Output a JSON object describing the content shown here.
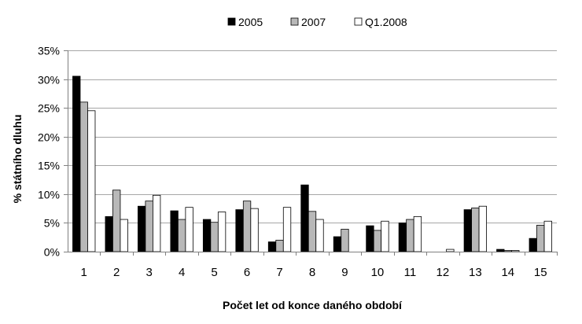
{
  "chart_data": {
    "type": "bar",
    "xlabel": "Počet let od konce daného období",
    "ylabel": "% státního dluhu",
    "ylim": [
      0,
      35
    ],
    "yticks": [
      "0%",
      "5%",
      "10%",
      "15%",
      "20%",
      "25%",
      "30%",
      "35%"
    ],
    "categories": [
      "1",
      "2",
      "3",
      "4",
      "5",
      "6",
      "7",
      "8",
      "9",
      "10",
      "11",
      "12",
      "13",
      "14",
      "15"
    ],
    "grid": true,
    "legend_position": "top",
    "series": [
      {
        "name": "2005",
        "color": "#000000",
        "values": [
          30.5,
          6.1,
          7.9,
          7.1,
          5.6,
          7.3,
          1.7,
          11.6,
          2.6,
          4.5,
          5.0,
          0.0,
          7.3,
          0.4,
          2.3
        ]
      },
      {
        "name": "2007",
        "color": "#b8b8b8",
        "values": [
          26.0,
          10.7,
          8.8,
          5.6,
          5.1,
          8.8,
          2.0,
          7.0,
          3.9,
          3.7,
          5.6,
          0.0,
          7.6,
          0.2,
          4.6
        ]
      },
      {
        "name": "Q1.2008",
        "color": "#ffffff",
        "values": [
          24.5,
          5.6,
          9.8,
          7.7,
          6.9,
          7.5,
          7.7,
          5.6,
          0.0,
          5.3,
          6.1,
          0.4,
          7.9,
          0.2,
          5.3
        ]
      }
    ]
  }
}
